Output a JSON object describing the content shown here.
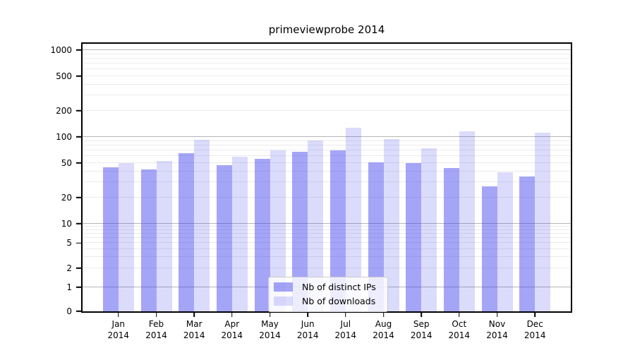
{
  "chart_data": {
    "type": "bar",
    "title": "primeviewprobe 2014",
    "categories": [
      "Jan",
      "Feb",
      "Mar",
      "Apr",
      "May",
      "Jun",
      "Jul",
      "Aug",
      "Sep",
      "Oct",
      "Nov",
      "Dec"
    ],
    "year_label": "2014",
    "series": [
      {
        "name": "Nb of distinct IPs",
        "color": "rgba(55,55,238,0.45)",
        "values": [
          45,
          42,
          65,
          47,
          56,
          68,
          70,
          51,
          50,
          44,
          27,
          35
        ]
      },
      {
        "name": "Nb of downloads",
        "color": "rgba(55,55,238,0.18)",
        "values": [
          50,
          53,
          93,
          59,
          70,
          92,
          128,
          94,
          74,
          117,
          39,
          113
        ]
      }
    ],
    "yticks": [
      0,
      1,
      2,
      5,
      10,
      20,
      50,
      100,
      200,
      500,
      1000
    ],
    "yscale": "log (compressed near zero)",
    "ylim": [
      0,
      1300
    ],
    "xlabel": "",
    "ylabel": "",
    "grid": true,
    "legend_position": "lower center"
  },
  "colors": {
    "background": "#ffffff",
    "axis": "#000000",
    "major_grid": "#b6b6b6",
    "minor_grid": "#ebebeb"
  }
}
